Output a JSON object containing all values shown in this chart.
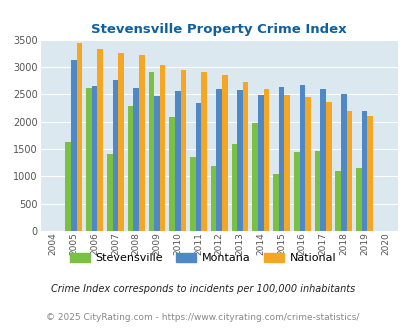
{
  "title": "Stevensville Property Crime Index",
  "years": [
    2004,
    2005,
    2006,
    2007,
    2008,
    2009,
    2010,
    2011,
    2012,
    2013,
    2014,
    2015,
    2016,
    2017,
    2018,
    2019,
    2020
  ],
  "stevensville": [
    0,
    1620,
    2620,
    1400,
    2280,
    2900,
    2080,
    1360,
    1190,
    1590,
    1970,
    1040,
    1450,
    1460,
    1100,
    1160,
    0
  ],
  "montana": [
    0,
    3130,
    2650,
    2760,
    2610,
    2470,
    2560,
    2340,
    2600,
    2580,
    2490,
    2630,
    2670,
    2600,
    2500,
    2200,
    0
  ],
  "national": [
    0,
    3430,
    3330,
    3260,
    3210,
    3040,
    2950,
    2900,
    2860,
    2730,
    2600,
    2490,
    2450,
    2360,
    2200,
    2100,
    0
  ],
  "stevensville_color": "#7ac143",
  "montana_color": "#4f88c6",
  "national_color": "#f5a623",
  "bg_color": "#dce8f0",
  "ylim": [
    0,
    3500
  ],
  "yticks": [
    0,
    500,
    1000,
    1500,
    2000,
    2500,
    3000,
    3500
  ],
  "footnote1": "Crime Index corresponds to incidents per 100,000 inhabitants",
  "footnote2": "© 2025 CityRating.com - https://www.cityrating.com/crime-statistics/",
  "legend_labels": [
    "Stevensville",
    "Montana",
    "National"
  ]
}
